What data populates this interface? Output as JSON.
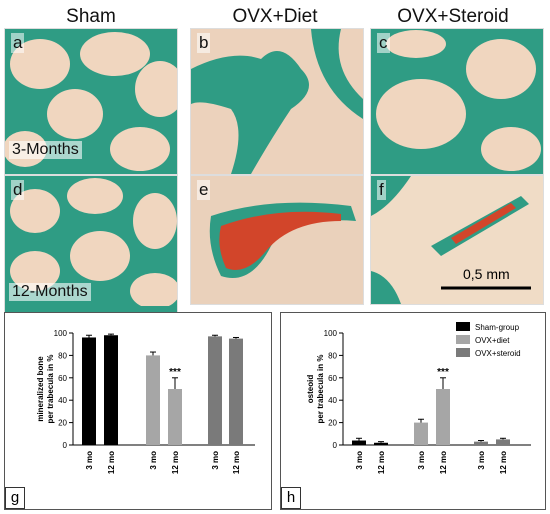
{
  "figure": {
    "column_titles": [
      "Sham",
      "OVX+Diet",
      "OVX+Steroid"
    ],
    "panel_letters": [
      "a",
      "b",
      "c",
      "d",
      "e",
      "f"
    ],
    "row_labels": [
      "3-Months",
      "12-Months"
    ],
    "scale_bar_label": "0,5 mm",
    "colors": {
      "bone_green": "#2f9c84",
      "marrow": "#f0d6bf",
      "osteoid_red": "#d2452a"
    }
  },
  "chart_data": [
    {
      "type": "bar",
      "panel": "g",
      "ylabel": "mineralized bone per trabecula in %",
      "ylim": [
        0,
        100
      ],
      "yticks": [
        0,
        20,
        40,
        60,
        80,
        100
      ],
      "categories": [
        "3 mo",
        "12 mo",
        "3 mo",
        "12 mo",
        "3 mo",
        "12 mo"
      ],
      "groups": [
        "Sham-group",
        "OVX+diet",
        "OVX+steroid"
      ],
      "values": [
        96,
        98,
        80,
        50,
        97,
        95
      ],
      "errors": [
        2,
        1,
        3,
        10,
        1,
        1
      ],
      "group_colors": [
        "#000000",
        "#a6a6a6",
        "#7a7a7a"
      ],
      "annotation": {
        "category_index": 3,
        "text": "***"
      }
    },
    {
      "type": "bar",
      "panel": "h",
      "ylabel": "osteoid per trabecula in %",
      "ylim": [
        0,
        100
      ],
      "yticks": [
        0,
        20,
        40,
        60,
        80,
        100
      ],
      "categories": [
        "3 mo",
        "12 mo",
        "3 mo",
        "12 mo",
        "3 mo",
        "12 mo"
      ],
      "groups": [
        "Sham-group",
        "OVX+diet",
        "OVX+steroid"
      ],
      "values": [
        4,
        2,
        20,
        50,
        3,
        5
      ],
      "errors": [
        2,
        1,
        3,
        10,
        1,
        1
      ],
      "group_colors": [
        "#000000",
        "#a6a6a6",
        "#7a7a7a"
      ],
      "legend": [
        "Sham-group",
        "OVX+diet",
        "OVX+steroid"
      ],
      "annotation": {
        "category_index": 3,
        "text": "***"
      }
    }
  ]
}
